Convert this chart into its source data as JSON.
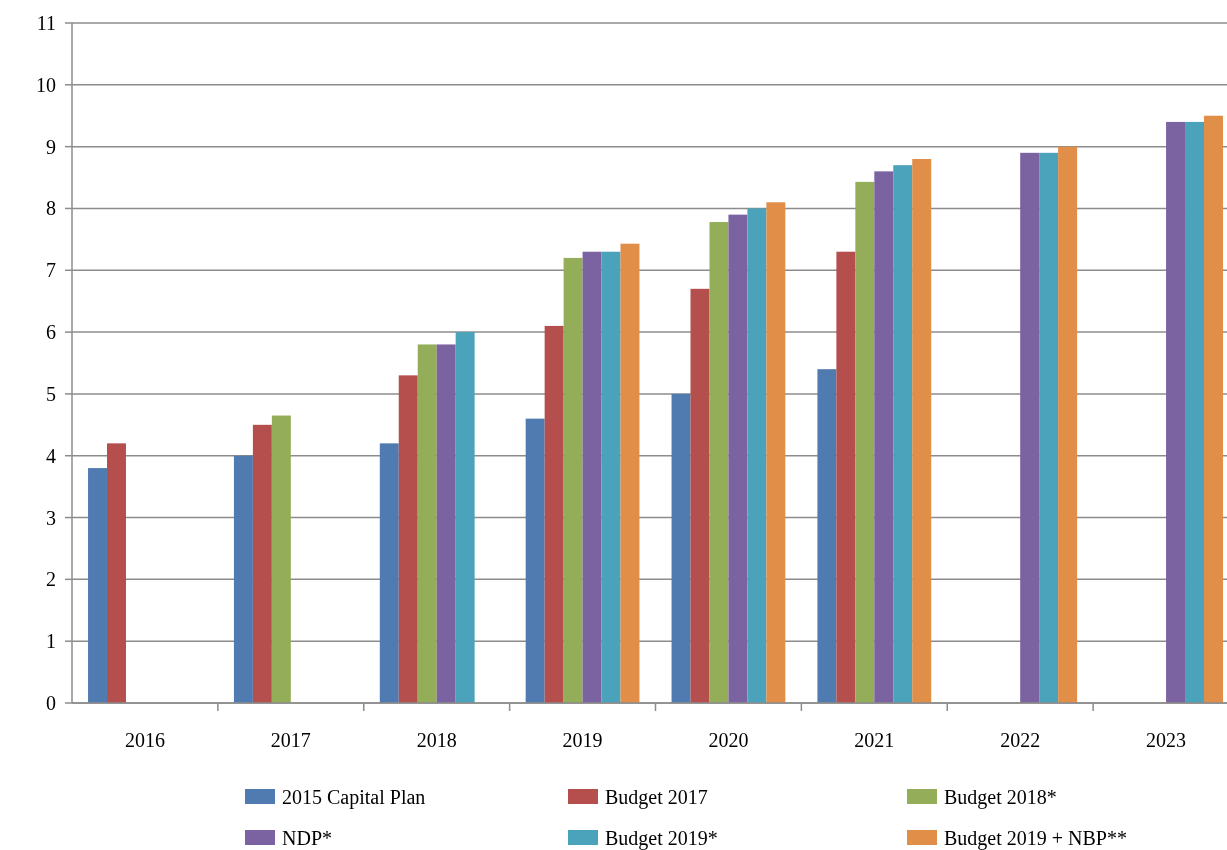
{
  "chart_data": {
    "type": "bar",
    "categories": [
      "2016",
      "2017",
      "2018",
      "2019",
      "2020",
      "2021",
      "2022",
      "2023"
    ],
    "series": [
      {
        "name": "2015 Capital Plan",
        "color": "#4f7bb0",
        "values": [
          3.8,
          4.0,
          4.2,
          4.6,
          5.0,
          5.4,
          null,
          null
        ]
      },
      {
        "name": "Budget 2017",
        "color": "#b44f4d",
        "values": [
          4.2,
          4.5,
          5.3,
          6.1,
          6.7,
          7.3,
          null,
          null
        ]
      },
      {
        "name": "Budget 2018*",
        "color": "#93ad59",
        "values": [
          null,
          4.65,
          5.8,
          7.2,
          7.78,
          8.43,
          null,
          null
        ]
      },
      {
        "name": "NDP*",
        "color": "#7b62a0",
        "values": [
          null,
          null,
          5.8,
          7.3,
          7.9,
          8.6,
          8.9,
          9.4
        ]
      },
      {
        "name": "Budget 2019*",
        "color": "#4aa3bb",
        "values": [
          null,
          null,
          6.0,
          7.3,
          8.0,
          8.7,
          8.9,
          9.4
        ]
      },
      {
        "name": "Budget 2019 + NBP**",
        "color": "#e08e48",
        "values": [
          null,
          null,
          null,
          7.43,
          8.1,
          8.8,
          9.0,
          9.5
        ]
      }
    ],
    "ylim": [
      0,
      11
    ],
    "yticks": [
      0,
      1,
      2,
      3,
      4,
      5,
      6,
      7,
      8,
      9,
      10,
      11
    ],
    "grid": "y",
    "legend": "bottom"
  }
}
